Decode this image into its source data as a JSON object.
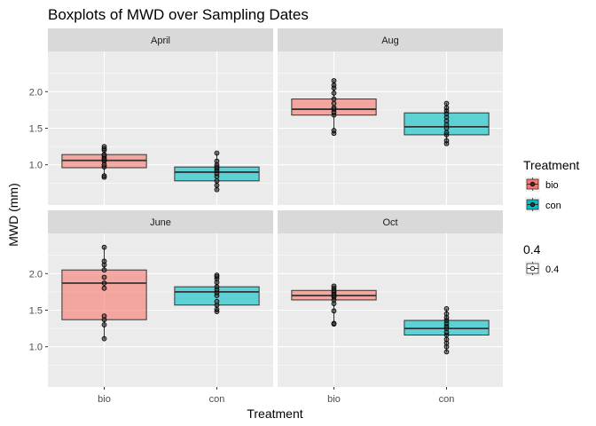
{
  "chart_data": {
    "type": "boxplot",
    "title": "Boxplots of MWD over Sampling Dates",
    "xlabel": "Treatment",
    "ylabel": "MWD (mm)",
    "categories": [
      "bio",
      "con"
    ],
    "ylim": [
      0.45,
      2.55
    ],
    "yticks": [
      1.0,
      1.5,
      2.0
    ],
    "ytick_labels": [
      "1.0",
      "1.5",
      "2.0"
    ],
    "grid": true,
    "legend_position": "right",
    "colors": {
      "bio": "#F8766D",
      "con": "#00BFC4",
      "panel_bg": "#EBEBEB",
      "strip_bg": "#D9D9D9",
      "point": "#333333"
    },
    "legend": {
      "fill_title": "Treatment",
      "fill_items": [
        "bio",
        "con"
      ],
      "alpha_title": "0.4",
      "alpha_items": [
        "0.4"
      ]
    },
    "panels": [
      {
        "name": "April",
        "boxes": [
          {
            "category": "bio",
            "q1": 0.96,
            "median": 1.06,
            "q3": 1.14,
            "whisker_low": 0.82,
            "whisker_high": 1.26,
            "points": [
              0.83,
              0.85,
              0.97,
              1.0,
              1.05,
              1.07,
              1.09,
              1.12,
              1.14,
              1.2,
              1.22,
              1.25
            ]
          },
          {
            "category": "con",
            "q1": 0.78,
            "median": 0.9,
            "q3": 0.97,
            "whisker_low": 0.65,
            "whisker_high": 1.17,
            "points": [
              0.66,
              0.72,
              0.78,
              0.84,
              0.88,
              0.92,
              0.95,
              0.97,
              1.0,
              1.05,
              1.16
            ]
          }
        ]
      },
      {
        "name": "Aug",
        "boxes": [
          {
            "category": "bio",
            "q1": 1.68,
            "median": 1.76,
            "q3": 1.9,
            "whisker_low": 1.42,
            "whisker_high": 2.16,
            "points": [
              1.43,
              1.47,
              1.68,
              1.72,
              1.76,
              1.78,
              1.84,
              1.9,
              1.98,
              2.05,
              2.09,
              2.15
            ]
          },
          {
            "category": "con",
            "q1": 1.41,
            "median": 1.52,
            "q3": 1.71,
            "whisker_low": 1.28,
            "whisker_high": 1.85,
            "points": [
              1.29,
              1.33,
              1.41,
              1.44,
              1.5,
              1.55,
              1.6,
              1.65,
              1.7,
              1.74,
              1.78,
              1.84
            ]
          }
        ]
      },
      {
        "name": "June",
        "boxes": [
          {
            "category": "bio",
            "q1": 1.37,
            "median": 1.87,
            "q3": 2.05,
            "whisker_low": 1.1,
            "whisker_high": 2.37,
            "points": [
              1.11,
              1.3,
              1.37,
              1.42,
              1.8,
              1.87,
              1.95,
              2.05,
              2.12,
              2.17,
              2.36
            ]
          },
          {
            "category": "con",
            "q1": 1.57,
            "median": 1.75,
            "q3": 1.82,
            "whisker_low": 1.47,
            "whisker_high": 1.98,
            "points": [
              1.48,
              1.51,
              1.57,
              1.62,
              1.7,
              1.74,
              1.78,
              1.82,
              1.88,
              1.93,
              1.96,
              1.98
            ]
          }
        ]
      },
      {
        "name": "Oct",
        "boxes": [
          {
            "category": "bio",
            "q1": 1.64,
            "median": 1.7,
            "q3": 1.77,
            "whisker_low": 1.31,
            "whisker_high": 1.84,
            "points": [
              1.31,
              1.32,
              1.49,
              1.59,
              1.64,
              1.68,
              1.7,
              1.72,
              1.75,
              1.77,
              1.8,
              1.83
            ]
          },
          {
            "category": "con",
            "q1": 1.16,
            "median": 1.25,
            "q3": 1.36,
            "whisker_low": 0.92,
            "whisker_high": 1.52,
            "points": [
              0.93,
              1.0,
              1.05,
              1.1,
              1.16,
              1.2,
              1.25,
              1.28,
              1.32,
              1.36,
              1.4,
              1.45,
              1.52
            ]
          }
        ]
      }
    ]
  }
}
